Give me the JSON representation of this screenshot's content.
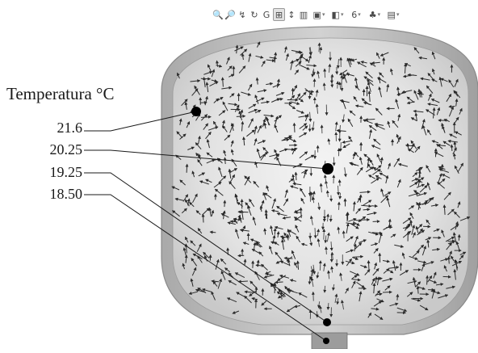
{
  "toolbar": {
    "icons": [
      {
        "name": "zoom-to-fit-icon",
        "glyph": "🔍",
        "dropdown": false
      },
      {
        "name": "zoom-to-area-icon",
        "glyph": "🔎",
        "dropdown": false
      },
      {
        "name": "previous-view-icon",
        "glyph": "↯",
        "dropdown": false
      },
      {
        "name": "rotate-view-icon",
        "glyph": "↻",
        "dropdown": false
      },
      {
        "name": "pan-view-icon",
        "glyph": "G",
        "dropdown": false
      },
      {
        "name": "section-view-icon",
        "glyph": "⊞",
        "dropdown": false,
        "active": true
      },
      {
        "name": "normal-to-icon",
        "glyph": "↕",
        "dropdown": false
      },
      {
        "name": "view-orientation-icon",
        "glyph": "▥",
        "dropdown": false
      },
      {
        "name": "display-style-icon",
        "glyph": "▣",
        "dropdown": true
      },
      {
        "name": "hide-show-items-icon",
        "glyph": "◧",
        "dropdown": true
      },
      {
        "name": "edit-appearance-icon",
        "glyph": "6",
        "dropdown": true
      },
      {
        "name": "apply-scene-icon",
        "glyph": "♣",
        "dropdown": true
      },
      {
        "name": "view-settings-icon",
        "glyph": "▤",
        "dropdown": true
      }
    ]
  },
  "legend": {
    "title": "Temperatura °C",
    "labels": [
      "21.6",
      "20.25",
      "19.25",
      "18.50"
    ]
  },
  "colors": {
    "vessel_shell": "#bdbdbd",
    "vessel_inner": "#e8e8e8",
    "arrow": "#2a2a2a",
    "probe": "#000000"
  }
}
